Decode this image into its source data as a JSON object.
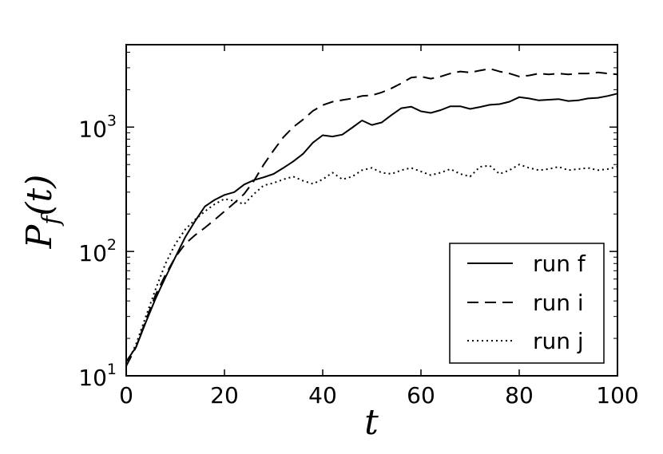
{
  "chart_data": {
    "type": "line",
    "title": "",
    "xlabel": "t",
    "ylabel": "P_f(t)",
    "xlim": [
      0,
      100
    ],
    "ylim": [
      10,
      4600
    ],
    "yscale": "log",
    "grid": false,
    "legend_position": "bottom-right",
    "x_ticks": [
      {
        "value": 0,
        "label": "0"
      },
      {
        "value": 20,
        "label": "20"
      },
      {
        "value": 40,
        "label": "40"
      },
      {
        "value": 60,
        "label": "60"
      },
      {
        "value": 80,
        "label": "80"
      },
      {
        "value": 100,
        "label": "100"
      }
    ],
    "y_ticks": [
      {
        "value": 10,
        "base": "10",
        "exp": "1"
      },
      {
        "value": 100,
        "base": "10",
        "exp": "2"
      },
      {
        "value": 1000,
        "base": "10",
        "exp": "3"
      }
    ],
    "x": [
      0,
      2,
      4,
      6,
      8,
      10,
      12,
      14,
      16,
      18,
      20,
      22,
      24,
      26,
      28,
      30,
      32,
      34,
      36,
      38,
      40,
      42,
      44,
      46,
      48,
      50,
      52,
      54,
      56,
      58,
      60,
      62,
      64,
      66,
      68,
      70,
      72,
      74,
      76,
      78,
      80,
      82,
      84,
      86,
      88,
      90,
      92,
      94,
      96,
      98,
      100
    ],
    "series": [
      {
        "name": "run f",
        "style": "solid",
        "values": [
          13,
          17,
          27,
          42,
          62,
          90,
          130,
          175,
          230,
          260,
          285,
          300,
          345,
          375,
          395,
          420,
          470,
          530,
          610,
          750,
          860,
          840,
          870,
          990,
          1130,
          1040,
          1090,
          1250,
          1420,
          1460,
          1340,
          1300,
          1370,
          1470,
          1470,
          1400,
          1450,
          1510,
          1530,
          1600,
          1740,
          1700,
          1640,
          1660,
          1680,
          1620,
          1640,
          1700,
          1720,
          1780,
          1860
        ]
      },
      {
        "name": "run i",
        "style": "dashed",
        "values": [
          12,
          17,
          28,
          45,
          65,
          90,
          115,
          135,
          155,
          180,
          210,
          245,
          290,
          370,
          500,
          650,
          830,
          1000,
          1150,
          1350,
          1500,
          1600,
          1650,
          1700,
          1780,
          1800,
          1900,
          2050,
          2250,
          2500,
          2550,
          2450,
          2550,
          2700,
          2800,
          2750,
          2850,
          2950,
          2800,
          2700,
          2550,
          2600,
          2700,
          2650,
          2700,
          2650,
          2700,
          2700,
          2750,
          2700,
          2650
        ]
      },
      {
        "name": "run j",
        "style": "dotted",
        "values": [
          12,
          18,
          30,
          50,
          80,
          115,
          150,
          180,
          210,
          240,
          265,
          255,
          240,
          290,
          340,
          355,
          380,
          400,
          370,
          350,
          380,
          430,
          380,
          400,
          450,
          470,
          430,
          420,
          450,
          470,
          440,
          410,
          430,
          460,
          420,
          400,
          480,
          490,
          420,
          450,
          500,
          470,
          450,
          460,
          480,
          450,
          460,
          470,
          450,
          460,
          480
        ]
      }
    ]
  }
}
